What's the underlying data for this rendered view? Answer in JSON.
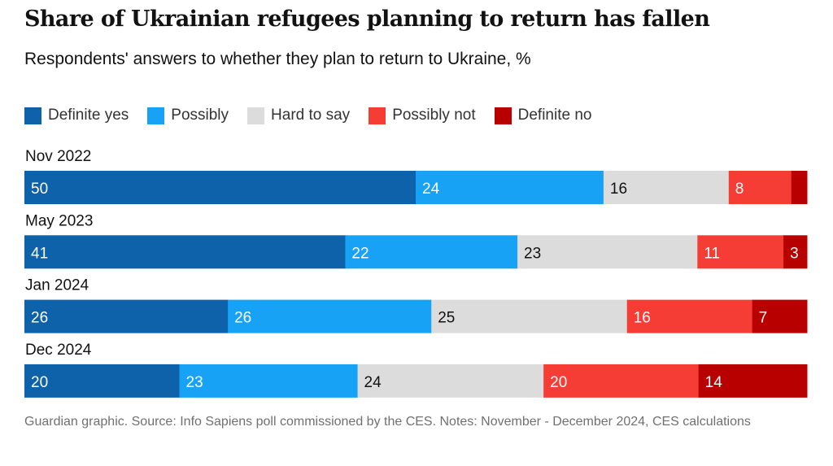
{
  "colors": {
    "definite_yes": "#0d62a9",
    "possibly": "#17a2f5",
    "hard_to_say": "#dcdcdc",
    "possibly_not": "#f53d36",
    "definite_no": "#b80000",
    "text_dark": "#121212",
    "text_light": "#ffffff"
  },
  "chart_data": {
    "type": "bar",
    "orientation": "horizontal",
    "stacked": true,
    "title": "Share of Ukrainian refugees planning to return has fallen",
    "subtitle": "Respondents' answers to whether they plan to return to Ukraine, %",
    "categories": [
      "Nov 2022",
      "May 2023",
      "Jan 2024",
      "Dec 2024"
    ],
    "series": [
      {
        "name": "Definite yes",
        "color_key": "definite_yes",
        "values": [
          50,
          41,
          26,
          20
        ],
        "labels": [
          "50",
          "41",
          "26",
          "20"
        ]
      },
      {
        "name": "Possibly",
        "color_key": "possibly",
        "values": [
          24,
          22,
          26,
          23
        ],
        "labels": [
          "24",
          "22",
          "26",
          "23"
        ]
      },
      {
        "name": "Hard to say",
        "color_key": "hard_to_say",
        "values": [
          16,
          23,
          25,
          24
        ],
        "labels": [
          "16",
          "23",
          "25",
          "24"
        ]
      },
      {
        "name": "Possibly not",
        "color_key": "possibly_not",
        "values": [
          8,
          11,
          16,
          20
        ],
        "labels": [
          "8",
          "11",
          "16",
          "20"
        ]
      },
      {
        "name": "Definite no",
        "color_key": "definite_no",
        "values": [
          2,
          3,
          7,
          14
        ],
        "labels": [
          "",
          "3",
          "7",
          "14"
        ]
      }
    ],
    "legend_position": "top-left",
    "grid": false
  },
  "footer": {
    "source": "Guardian graphic. Source: Info Sapiens poll commissioned by the CES. Notes: November - December 2024, CES calculations"
  }
}
